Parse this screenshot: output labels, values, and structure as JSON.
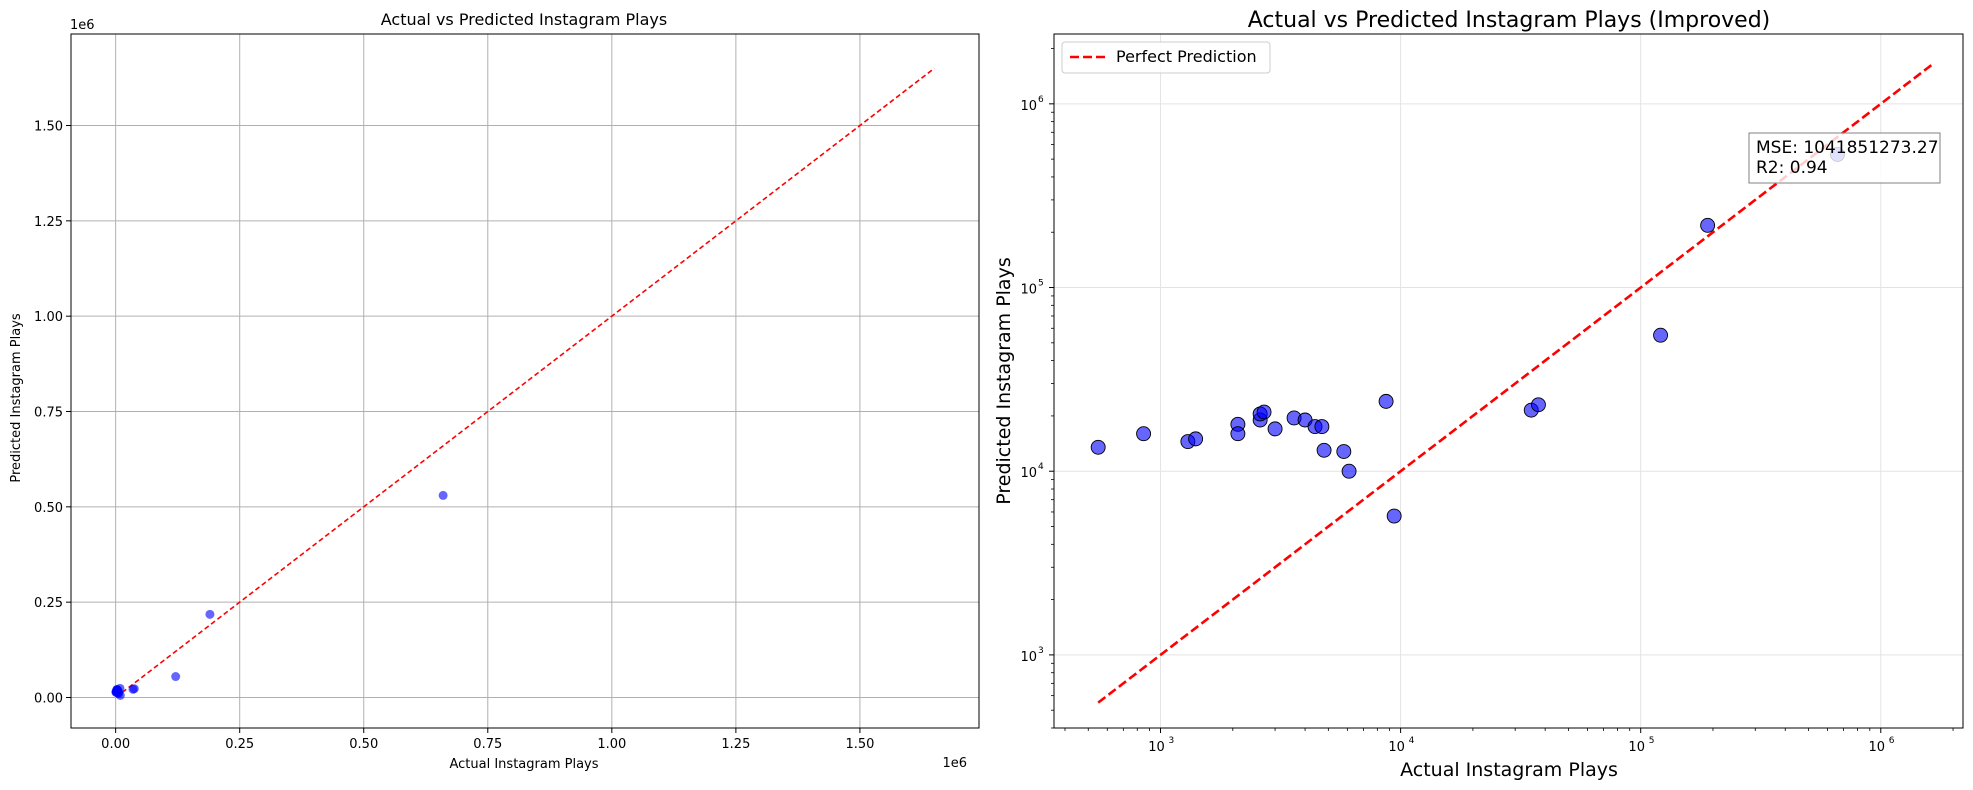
{
  "chart_data": [
    {
      "type": "scatter",
      "title": "Actual vs Predicted Instagram Plays",
      "xlabel": "Actual Instagram Plays",
      "ylabel": "Predicted Instagram Plays",
      "x_offset_text": "1e6",
      "y_offset_text": "1e6",
      "xlim": [
        -90000,
        1740000
      ],
      "ylim": [
        -80000,
        1740000
      ],
      "xticks": [
        0,
        250000,
        500000,
        750000,
        1000000,
        1250000,
        1500000
      ],
      "xtick_labels": [
        "0.00",
        "0.25",
        "0.50",
        "0.75",
        "1.00",
        "1.25",
        "1.50"
      ],
      "yticks": [
        0,
        250000,
        500000,
        750000,
        1000000,
        1250000,
        1500000
      ],
      "ytick_labels": [
        "0.00",
        "0.25",
        "0.50",
        "0.75",
        "1.00",
        "1.25",
        "1.50"
      ],
      "grid": true,
      "point_color": "#0000ff",
      "line_color": "#ff0000",
      "points": [
        {
          "x": 550,
          "y": 13500
        },
        {
          "x": 850,
          "y": 16000
        },
        {
          "x": 1300,
          "y": 14500
        },
        {
          "x": 1400,
          "y": 15000
        },
        {
          "x": 2100,
          "y": 18000
        },
        {
          "x": 2100,
          "y": 16000
        },
        {
          "x": 2600,
          "y": 19000
        },
        {
          "x": 2600,
          "y": 20500
        },
        {
          "x": 2700,
          "y": 21000
        },
        {
          "x": 3000,
          "y": 17000
        },
        {
          "x": 3600,
          "y": 19500
        },
        {
          "x": 4000,
          "y": 19000
        },
        {
          "x": 4400,
          "y": 17500
        },
        {
          "x": 4700,
          "y": 17500
        },
        {
          "x": 4800,
          "y": 13000
        },
        {
          "x": 5800,
          "y": 12800
        },
        {
          "x": 6100,
          "y": 10000
        },
        {
          "x": 8700,
          "y": 24000
        },
        {
          "x": 9400,
          "y": 5700
        },
        {
          "x": 35000,
          "y": 21500
        },
        {
          "x": 37500,
          "y": 23000
        },
        {
          "x": 121000,
          "y": 55000
        },
        {
          "x": 190000,
          "y": 218000
        },
        {
          "x": 660000,
          "y": 530000
        }
      ],
      "reference_line": {
        "x": [
          550,
          1650000
        ],
        "y": [
          550,
          1650000
        ]
      }
    },
    {
      "type": "scatter",
      "title": "Actual vs Predicted Instagram Plays (Improved)",
      "xlabel": "Actual Instagram Plays",
      "ylabel": "Predicted Instagram Plays",
      "xscale": "log",
      "yscale": "log",
      "xlim": [
        360,
        2200000
      ],
      "ylim": [
        400,
        2400000
      ],
      "xticks": [
        1000,
        10000,
        100000,
        1000000
      ],
      "xtick_labels": [
        "10",
        "10",
        "10",
        "10"
      ],
      "xtick_exponents": [
        "3",
        "4",
        "5",
        "6"
      ],
      "yticks": [
        1000,
        10000,
        100000,
        1000000
      ],
      "ytick_labels": [
        "10",
        "10",
        "10",
        "10"
      ],
      "ytick_exponents": [
        "3",
        "4",
        "5",
        "6"
      ],
      "grid": true,
      "legend": {
        "placement": "upper-left",
        "entries": [
          "Perfect Prediction"
        ]
      },
      "annotation": {
        "lines": [
          "MSE: 1041851273.27",
          "R2: 0.94"
        ]
      },
      "point_color": "#0000ff",
      "line_color": "#ff0000",
      "points": [
        {
          "x": 550,
          "y": 13500
        },
        {
          "x": 850,
          "y": 16000
        },
        {
          "x": 1300,
          "y": 14500
        },
        {
          "x": 1400,
          "y": 15000
        },
        {
          "x": 2100,
          "y": 18000
        },
        {
          "x": 2100,
          "y": 16000
        },
        {
          "x": 2600,
          "y": 19000
        },
        {
          "x": 2600,
          "y": 20500
        },
        {
          "x": 2700,
          "y": 21000
        },
        {
          "x": 3000,
          "y": 17000
        },
        {
          "x": 3600,
          "y": 19500
        },
        {
          "x": 4000,
          "y": 19000
        },
        {
          "x": 4400,
          "y": 17500
        },
        {
          "x": 4700,
          "y": 17500
        },
        {
          "x": 4800,
          "y": 13000
        },
        {
          "x": 5800,
          "y": 12800
        },
        {
          "x": 6100,
          "y": 10000
        },
        {
          "x": 8700,
          "y": 24000
        },
        {
          "x": 9400,
          "y": 5700
        },
        {
          "x": 35000,
          "y": 21500
        },
        {
          "x": 37500,
          "y": 23000
        },
        {
          "x": 121000,
          "y": 55000
        },
        {
          "x": 190000,
          "y": 218000
        },
        {
          "x": 660000,
          "y": 530000
        }
      ],
      "reference_line": {
        "x": [
          550,
          1650000
        ],
        "y": [
          550,
          1650000
        ]
      }
    }
  ]
}
